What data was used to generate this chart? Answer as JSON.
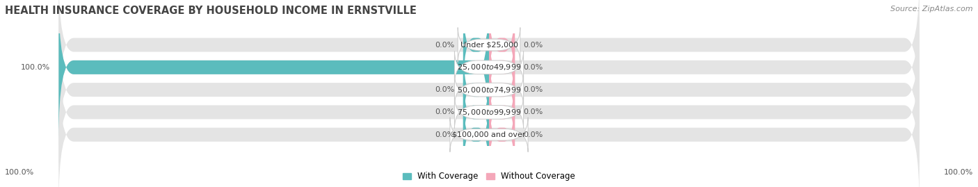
{
  "title": "HEALTH INSURANCE COVERAGE BY HOUSEHOLD INCOME IN ERNSTVILLE",
  "source": "Source: ZipAtlas.com",
  "categories": [
    "Under $25,000",
    "$25,000 to $49,999",
    "$50,000 to $74,999",
    "$75,000 to $99,999",
    "$100,000 and over"
  ],
  "with_coverage": [
    0.0,
    100.0,
    0.0,
    0.0,
    0.0
  ],
  "without_coverage": [
    0.0,
    0.0,
    0.0,
    0.0,
    0.0
  ],
  "color_with": "#5bbcbd",
  "color_without": "#f4a7b9",
  "bar_bg_color": "#e4e4e4",
  "bar_height": 0.62,
  "xlim": [
    -100,
    100
  ],
  "label_left_100": "100.0%",
  "label_right_100": "100.0%",
  "title_fontsize": 10.5,
  "source_fontsize": 8,
  "label_fontsize": 8,
  "category_fontsize": 8,
  "legend_fontsize": 8.5,
  "small_bar_width": 6
}
